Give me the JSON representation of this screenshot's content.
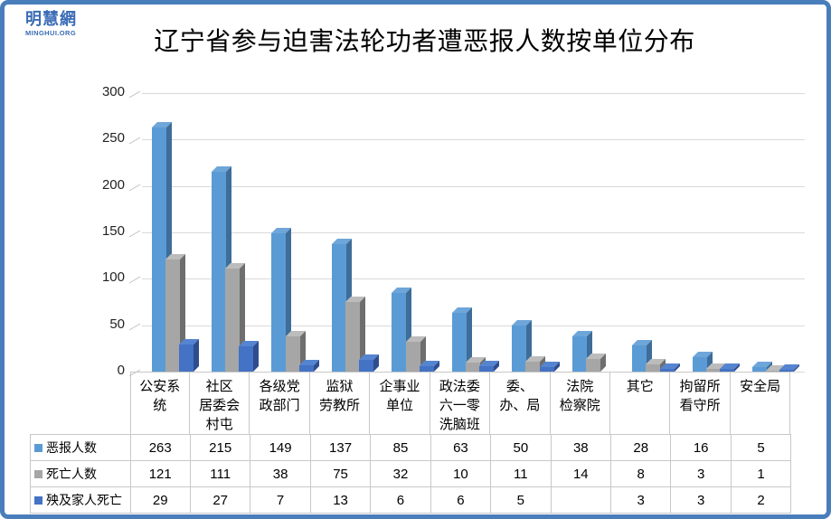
{
  "logo": {
    "name": "明慧網",
    "domain": "MINGHUI.ORG",
    "color": "#3a6bb5"
  },
  "title": "辽宁省参与迫害法轮功者遭恶报人数按单位分布",
  "frame": {
    "border_color": "#4a7ebb"
  },
  "chart_data": {
    "type": "bar",
    "style": "3d-clustered-with-data-table",
    "title": "辽宁省参与迫害法轮功者遭恶报人数按单位分布",
    "xlabel": "",
    "ylabel": "",
    "ylim": [
      0,
      300
    ],
    "y_ticks": [
      0,
      50,
      100,
      150,
      200,
      250,
      300
    ],
    "grid": true,
    "legend_position": "data-table-left",
    "categories": [
      "公安系统",
      "社区居委会村屯",
      "各级党政部门",
      "监狱劳教所",
      "企事业单位",
      "政法委六一零洗脑班",
      "委、办、局",
      "法院检察院",
      "其它",
      "拘留所看守所",
      "安全局"
    ],
    "category_display_lines": [
      [
        "公安系",
        "统"
      ],
      [
        "社区",
        "居委会",
        "村屯"
      ],
      [
        "各级党",
        "政部门"
      ],
      [
        "监狱",
        "劳教所"
      ],
      [
        "企事业",
        "单位"
      ],
      [
        "政法委",
        "六一零",
        "洗脑班"
      ],
      [
        "委、",
        "办、局"
      ],
      [
        "法院",
        "检察院"
      ],
      [
        "其它"
      ],
      [
        "拘留所",
        "看守所"
      ],
      [
        "安全局"
      ]
    ],
    "series": [
      {
        "name": "恶报人数",
        "color": "#5b9bd5",
        "color_top": "#6ea6d9",
        "color_side": "#3e6d99",
        "values": [
          263,
          215,
          149,
          137,
          85,
          63,
          50,
          38,
          28,
          16,
          5
        ]
      },
      {
        "name": "死亡人数",
        "color": "#a6a6a6",
        "color_top": "#bcbcbc",
        "color_side": "#6e6e6e",
        "values": [
          121,
          111,
          38,
          75,
          32,
          10,
          11,
          14,
          8,
          3,
          1
        ]
      },
      {
        "name": "殃及家人死亡",
        "color": "#4472c4",
        "color_top": "#5585d0",
        "color_side": "#2e4d8e",
        "values": [
          29,
          27,
          7,
          13,
          6,
          6,
          5,
          null,
          3,
          3,
          2
        ]
      }
    ]
  }
}
